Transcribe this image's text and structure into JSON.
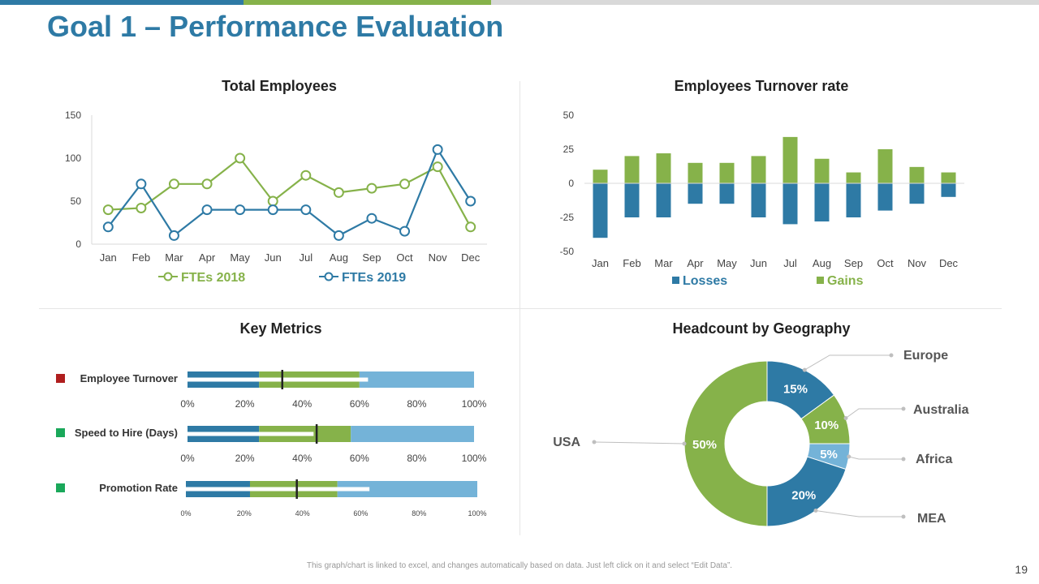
{
  "title": "Goal 1 – Performance Evaluation",
  "footer": "This graph/chart is linked to excel, and changes automatically based on data. Just left click on it and select “Edit Data”.",
  "page_number": "19",
  "colors": {
    "blue": "#2e7aa5",
    "green": "#86b24a",
    "light_blue": "#74b3d8",
    "gray": "#d9d9d9",
    "red_marker": "#b01e1e",
    "green_marker": "#1aa85a"
  },
  "chart_data": [
    {
      "type": "line",
      "title": "Total Employees",
      "categories": [
        "Jan",
        "Feb",
        "Mar",
        "Apr",
        "May",
        "Jun",
        "Jul",
        "Aug",
        "Sep",
        "Oct",
        "Nov",
        "Dec"
      ],
      "yticks": [
        "0",
        "50",
        "100",
        "150"
      ],
      "ylim": [
        0,
        150
      ],
      "series": [
        {
          "name": "FTEs 2018",
          "values": [
            40,
            42,
            70,
            70,
            100,
            50,
            80,
            60,
            65,
            70,
            90,
            20
          ]
        },
        {
          "name": "FTEs 2019",
          "values": [
            20,
            70,
            10,
            40,
            40,
            40,
            40,
            10,
            30,
            15,
            110,
            50
          ]
        }
      ]
    },
    {
      "type": "bar",
      "title": "Employees Turnover rate",
      "categories": [
        "Jan",
        "Feb",
        "Mar",
        "Apr",
        "May",
        "Jun",
        "Jul",
        "Aug",
        "Sep",
        "Oct",
        "Nov",
        "Dec"
      ],
      "yticks": [
        "50",
        "25",
        "0",
        "-25",
        "-50"
      ],
      "ylim": [
        -50,
        50
      ],
      "series": [
        {
          "name": "Losses",
          "values": [
            -40,
            -25,
            -25,
            -15,
            -15,
            -25,
            -30,
            -28,
            -25,
            -20,
            -15,
            -10
          ]
        },
        {
          "name": "Gains",
          "values": [
            10,
            20,
            22,
            15,
            15,
            20,
            34,
            18,
            8,
            25,
            12,
            8
          ]
        }
      ]
    },
    {
      "type": "bullet",
      "title": "Key Metrics",
      "xticks": [
        "0%",
        "20%",
        "40%",
        "60%",
        "80%",
        "100%"
      ],
      "metrics": [
        {
          "label": "Employee Turnover",
          "marker": "red",
          "bands": [
            25,
            60,
            100
          ],
          "bar": 63,
          "target": 33
        },
        {
          "label": "Speed to Hire (Days)",
          "marker": "green",
          "bands": [
            25,
            57,
            100
          ],
          "bar": 44,
          "target": 45
        },
        {
          "label": "Promotion Rate",
          "marker": "green",
          "bands": [
            22,
            52,
            100
          ],
          "bar": 63,
          "target": 38
        }
      ]
    },
    {
      "type": "pie",
      "title": "Headcount by Geography",
      "slices": [
        {
          "name": "Europe",
          "value": 15,
          "label": "15%",
          "color": "blue"
        },
        {
          "name": "Australia",
          "value": 10,
          "label": "10%",
          "color": "green"
        },
        {
          "name": "Africa",
          "value": 5,
          "label": "5%",
          "color": "light_blue"
        },
        {
          "name": "MEA",
          "value": 20,
          "label": "20%",
          "color": "blue"
        },
        {
          "name": "USA",
          "value": 50,
          "label": "50%",
          "color": "green"
        }
      ]
    }
  ]
}
